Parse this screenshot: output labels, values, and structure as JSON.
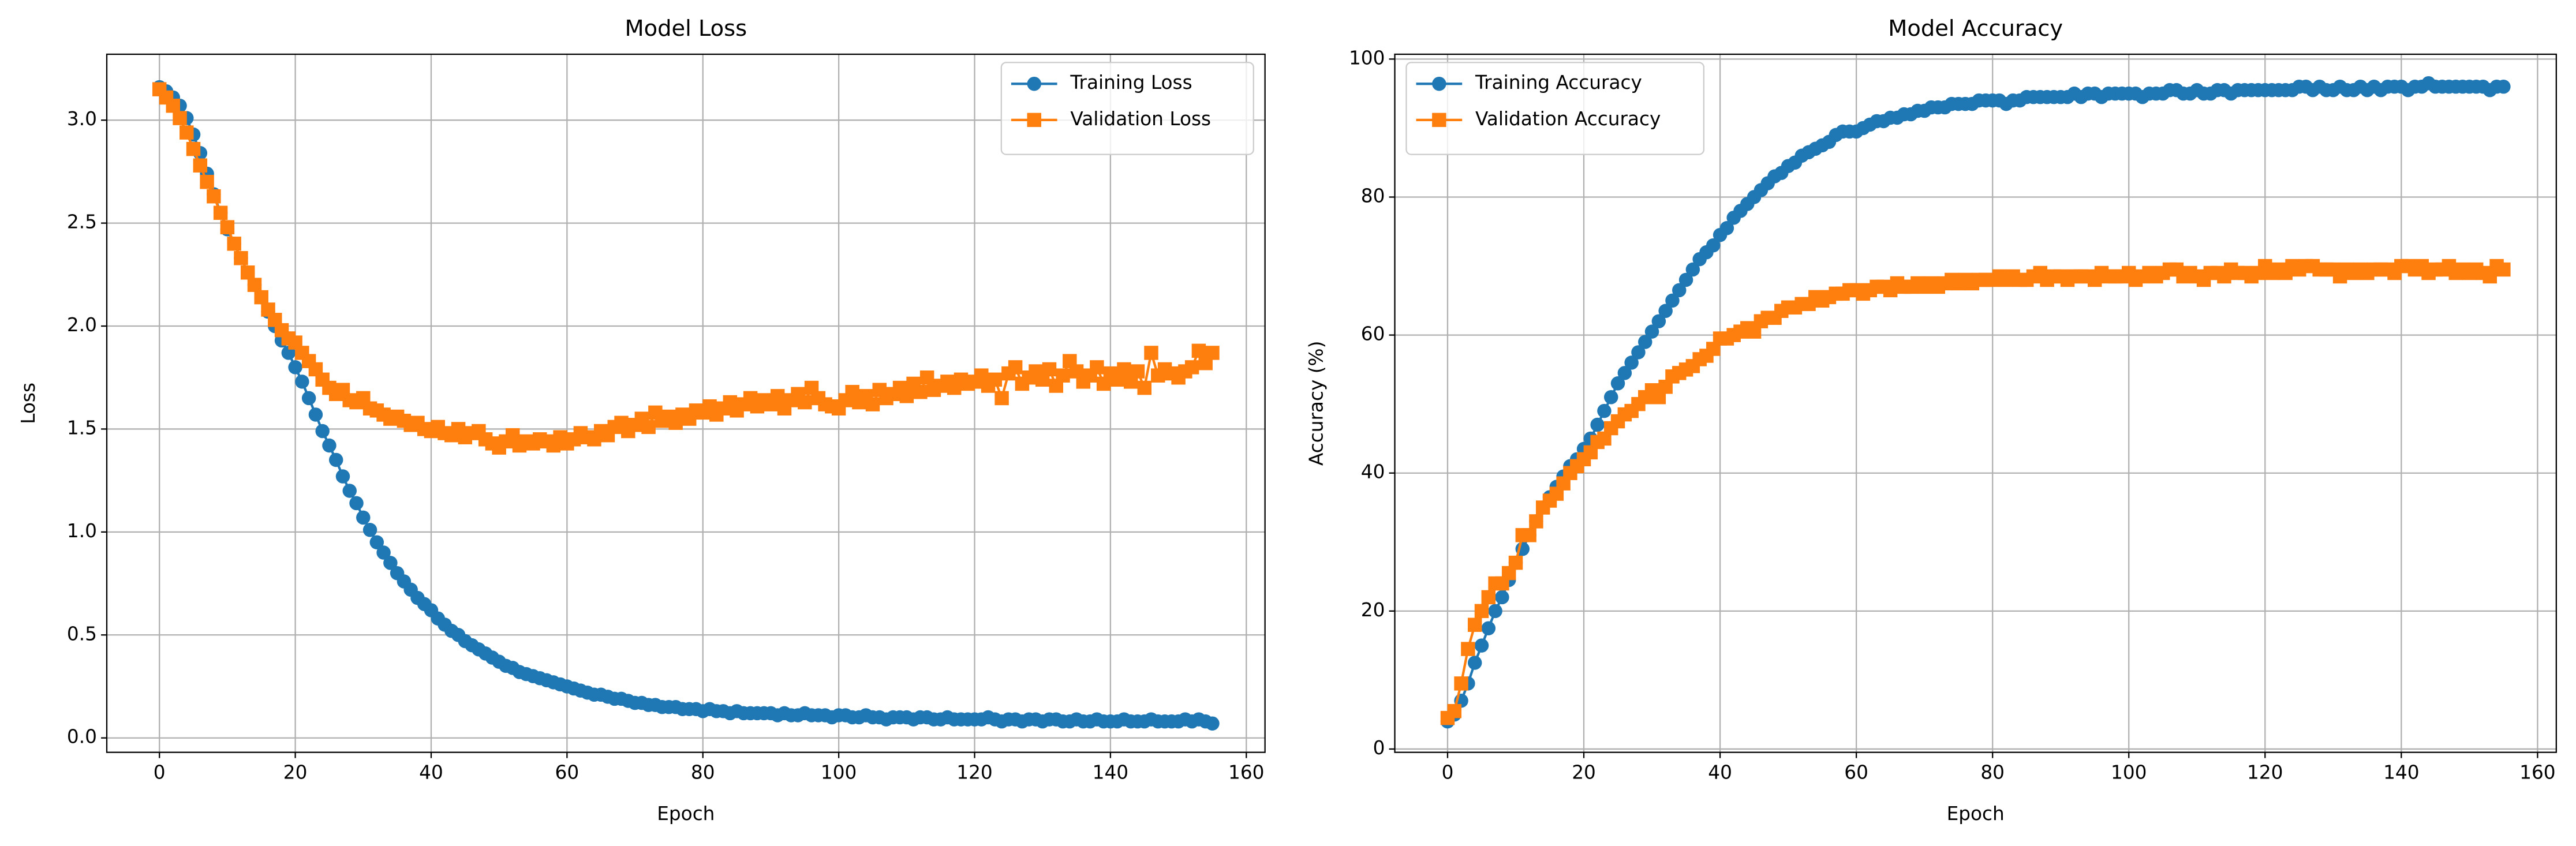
{
  "chart_data": [
    {
      "type": "line",
      "title": "Model Loss",
      "xlabel": "Epoch",
      "ylabel": "Loss",
      "grid": true,
      "legend": "upper right",
      "xlim": [
        -7.75,
        162.75
      ],
      "xticks": [
        0,
        20,
        40,
        60,
        80,
        100,
        120,
        140,
        160
      ],
      "ylim": [
        -0.07,
        3.32
      ],
      "yticks": [
        {
          "value": 0,
          "label": "0.0"
        },
        0.5,
        {
          "value": 1,
          "label": "1.0"
        },
        1.5,
        {
          "value": 2,
          "label": "2.0"
        },
        2.5,
        {
          "value": 3,
          "label": "3.0"
        }
      ],
      "x": [
        0,
        1,
        2,
        3,
        4,
        5,
        6,
        7,
        8,
        9,
        10,
        11,
        12,
        13,
        14,
        15,
        16,
        17,
        18,
        19,
        20,
        21,
        22,
        23,
        24,
        25,
        26,
        27,
        28,
        29,
        30,
        31,
        32,
        33,
        34,
        35,
        36,
        37,
        38,
        39,
        40,
        41,
        42,
        43,
        44,
        45,
        46,
        47,
        48,
        49,
        50,
        51,
        52,
        53,
        54,
        55,
        56,
        57,
        58,
        59,
        60,
        61,
        62,
        63,
        64,
        65,
        66,
        67,
        68,
        69,
        70,
        71,
        72,
        73,
        74,
        75,
        76,
        77,
        78,
        79,
        80,
        81,
        82,
        83,
        84,
        85,
        86,
        87,
        88,
        89,
        90,
        91,
        92,
        93,
        94,
        95,
        96,
        97,
        98,
        99,
        100,
        101,
        102,
        103,
        104,
        105,
        106,
        107,
        108,
        109,
        110,
        111,
        112,
        113,
        114,
        115,
        116,
        117,
        118,
        119,
        120,
        121,
        122,
        123,
        124,
        125,
        126,
        127,
        128,
        129,
        130,
        131,
        132,
        133,
        134,
        135,
        136,
        137,
        138,
        139,
        140,
        141,
        142,
        143,
        144,
        145,
        146,
        147,
        148,
        149,
        150,
        151,
        152,
        153,
        154,
        155
      ],
      "series": [
        {
          "name": "Training Loss",
          "color": "#1f77b4",
          "marker": "circle",
          "values": [
            3.16,
            3.14,
            3.11,
            3.07,
            3.01,
            2.93,
            2.84,
            2.74,
            2.64,
            2.55,
            2.47,
            2.4,
            2.33,
            2.26,
            2.2,
            2.14,
            2.07,
            2.0,
            1.93,
            1.87,
            1.8,
            1.73,
            1.65,
            1.57,
            1.49,
            1.42,
            1.35,
            1.27,
            1.2,
            1.14,
            1.07,
            1.01,
            0.95,
            0.9,
            0.85,
            0.8,
            0.76,
            0.72,
            0.68,
            0.65,
            0.62,
            0.58,
            0.55,
            0.52,
            0.5,
            0.47,
            0.45,
            0.43,
            0.41,
            0.39,
            0.37,
            0.35,
            0.34,
            0.32,
            0.31,
            0.3,
            0.29,
            0.28,
            0.27,
            0.26,
            0.25,
            0.24,
            0.23,
            0.22,
            0.21,
            0.21,
            0.2,
            0.19,
            0.19,
            0.18,
            0.17,
            0.17,
            0.16,
            0.16,
            0.15,
            0.15,
            0.15,
            0.14,
            0.14,
            0.14,
            0.13,
            0.14,
            0.13,
            0.13,
            0.12,
            0.13,
            0.12,
            0.12,
            0.12,
            0.12,
            0.12,
            0.11,
            0.12,
            0.11,
            0.11,
            0.12,
            0.11,
            0.11,
            0.11,
            0.1,
            0.11,
            0.11,
            0.1,
            0.1,
            0.11,
            0.1,
            0.1,
            0.09,
            0.1,
            0.1,
            0.1,
            0.09,
            0.1,
            0.1,
            0.09,
            0.09,
            0.1,
            0.09,
            0.09,
            0.09,
            0.09,
            0.09,
            0.1,
            0.09,
            0.08,
            0.09,
            0.09,
            0.08,
            0.09,
            0.09,
            0.08,
            0.09,
            0.09,
            0.08,
            0.08,
            0.09,
            0.08,
            0.08,
            0.09,
            0.08,
            0.08,
            0.08,
            0.09,
            0.08,
            0.08,
            0.08,
            0.09,
            0.08,
            0.08,
            0.08,
            0.08,
            0.09,
            0.08,
            0.09,
            0.08,
            0.07
          ]
        },
        {
          "name": "Validation Loss",
          "color": "#ff7f0e",
          "marker": "square",
          "values": [
            3.15,
            3.11,
            3.07,
            3.01,
            2.94,
            2.86,
            2.78,
            2.7,
            2.63,
            2.55,
            2.48,
            2.4,
            2.33,
            2.26,
            2.2,
            2.14,
            2.08,
            2.03,
            1.98,
            1.94,
            1.92,
            1.87,
            1.83,
            1.79,
            1.74,
            1.7,
            1.67,
            1.69,
            1.64,
            1.63,
            1.65,
            1.6,
            1.59,
            1.57,
            1.55,
            1.56,
            1.54,
            1.52,
            1.53,
            1.5,
            1.49,
            1.51,
            1.48,
            1.47,
            1.5,
            1.46,
            1.48,
            1.49,
            1.45,
            1.43,
            1.41,
            1.44,
            1.47,
            1.42,
            1.44,
            1.43,
            1.45,
            1.44,
            1.42,
            1.46,
            1.43,
            1.45,
            1.48,
            1.46,
            1.45,
            1.49,
            1.47,
            1.51,
            1.53,
            1.49,
            1.52,
            1.55,
            1.51,
            1.58,
            1.54,
            1.56,
            1.53,
            1.57,
            1.55,
            1.59,
            1.58,
            1.61,
            1.57,
            1.6,
            1.63,
            1.59,
            1.62,
            1.65,
            1.61,
            1.64,
            1.62,
            1.66,
            1.6,
            1.64,
            1.67,
            1.63,
            1.7,
            1.65,
            1.62,
            1.61,
            1.6,
            1.64,
            1.68,
            1.63,
            1.66,
            1.62,
            1.69,
            1.65,
            1.67,
            1.7,
            1.66,
            1.72,
            1.68,
            1.75,
            1.69,
            1.71,
            1.73,
            1.7,
            1.74,
            1.72,
            1.73,
            1.76,
            1.71,
            1.74,
            1.65,
            1.77,
            1.8,
            1.72,
            1.75,
            1.78,
            1.74,
            1.79,
            1.71,
            1.76,
            1.83,
            1.78,
            1.73,
            1.76,
            1.8,
            1.72,
            1.77,
            1.74,
            1.79,
            1.73,
            1.78,
            1.7,
            1.87,
            1.76,
            1.79,
            1.77,
            1.75,
            1.78,
            1.8,
            1.88,
            1.82,
            1.87
          ]
        }
      ]
    },
    {
      "type": "line",
      "title": "Model Accuracy",
      "xlabel": "Epoch",
      "ylabel": "Accuracy (%)",
      "grid": true,
      "legend": "upper left",
      "xlim": [
        -7.75,
        162.75
      ],
      "xticks": [
        0,
        20,
        40,
        60,
        80,
        100,
        120,
        140,
        160
      ],
      "ylim": [
        -0.48,
        100.7
      ],
      "yticks": [
        0,
        20,
        40,
        60,
        80,
        100
      ],
      "x": [
        0,
        1,
        2,
        3,
        4,
        5,
        6,
        7,
        8,
        9,
        10,
        11,
        12,
        13,
        14,
        15,
        16,
        17,
        18,
        19,
        20,
        21,
        22,
        23,
        24,
        25,
        26,
        27,
        28,
        29,
        30,
        31,
        32,
        33,
        34,
        35,
        36,
        37,
        38,
        39,
        40,
        41,
        42,
        43,
        44,
        45,
        46,
        47,
        48,
        49,
        50,
        51,
        52,
        53,
        54,
        55,
        56,
        57,
        58,
        59,
        60,
        61,
        62,
        63,
        64,
        65,
        66,
        67,
        68,
        69,
        70,
        71,
        72,
        73,
        74,
        75,
        76,
        77,
        78,
        79,
        80,
        81,
        82,
        83,
        84,
        85,
        86,
        87,
        88,
        89,
        90,
        91,
        92,
        93,
        94,
        95,
        96,
        97,
        98,
        99,
        100,
        101,
        102,
        103,
        104,
        105,
        106,
        107,
        108,
        109,
        110,
        111,
        112,
        113,
        114,
        115,
        116,
        117,
        118,
        119,
        120,
        121,
        122,
        123,
        124,
        125,
        126,
        127,
        128,
        129,
        130,
        131,
        132,
        133,
        134,
        135,
        136,
        137,
        138,
        139,
        140,
        141,
        142,
        143,
        144,
        145,
        146,
        147,
        148,
        149,
        150,
        151,
        152,
        153,
        154,
        155
      ],
      "series": [
        {
          "name": "Training Accuracy",
          "color": "#1f77b4",
          "marker": "circle",
          "values": [
            4,
            5,
            7,
            9.5,
            12.5,
            15,
            17.5,
            20,
            22,
            24.5,
            27,
            29,
            31,
            33,
            35,
            36.5,
            38,
            39.5,
            41,
            42,
            43.5,
            45,
            47,
            49,
            51,
            53,
            54.5,
            56,
            57.5,
            59,
            60.5,
            62,
            63.5,
            65,
            66.5,
            68,
            69.5,
            71,
            72,
            73,
            74.5,
            75.5,
            77,
            78,
            79,
            80,
            81,
            82,
            83,
            83.5,
            84.5,
            85,
            86,
            86.5,
            87,
            87.5,
            88,
            89,
            89.5,
            89.5,
            89.5,
            90,
            90.5,
            91,
            91,
            91.5,
            91.5,
            92,
            92,
            92.5,
            92.5,
            93,
            93,
            93,
            93.5,
            93.5,
            93.5,
            93.5,
            94,
            94,
            94,
            94,
            93.5,
            94,
            94,
            94.5,
            94.5,
            94.5,
            94.5,
            94.5,
            94.5,
            94.5,
            95,
            94.5,
            95,
            95,
            94.5,
            95,
            95,
            95,
            95,
            95,
            94.5,
            95,
            95,
            95,
            95.5,
            95.5,
            95,
            95,
            95.5,
            95,
            95,
            95.5,
            95.5,
            95,
            95.5,
            95.5,
            95.5,
            95.5,
            95.5,
            95.5,
            95.5,
            95.5,
            95.5,
            96,
            96,
            95.5,
            96,
            95.5,
            95.5,
            96,
            95.5,
            95.5,
            96,
            95.5,
            96,
            95.5,
            96,
            96,
            96,
            95.5,
            96,
            96,
            96.5,
            96,
            96,
            96,
            96,
            96,
            96,
            96,
            96,
            95.5,
            96,
            96
          ]
        },
        {
          "name": "Validation Accuracy",
          "color": "#ff7f0e",
          "marker": "square",
          "values": [
            4.5,
            5.5,
            9.5,
            14.5,
            18,
            20,
            22,
            24,
            24,
            25.5,
            27,
            31,
            31,
            33,
            35,
            36,
            37,
            38.5,
            40,
            41,
            42,
            43,
            44.5,
            45,
            46.5,
            47.5,
            48.5,
            49,
            50,
            51,
            52,
            51,
            52.5,
            54,
            54.5,
            55,
            55.5,
            56.5,
            57,
            58,
            59.5,
            59.5,
            60,
            60.5,
            61,
            60.5,
            62,
            62.5,
            62.5,
            63.5,
            64,
            64,
            64.5,
            64.5,
            65.5,
            65,
            65.5,
            66,
            66,
            66.5,
            66.5,
            66,
            66.5,
            67,
            67,
            66.5,
            67.5,
            67,
            67,
            67.5,
            67,
            67.5,
            67,
            67.5,
            68,
            67.5,
            68,
            67.5,
            68,
            68,
            68,
            68.5,
            68,
            68.5,
            68,
            68,
            68.5,
            69,
            68,
            68.5,
            68.5,
            68,
            68.5,
            68.5,
            68.5,
            68,
            69,
            68.5,
            68.5,
            68.5,
            69,
            68,
            68.5,
            69,
            68.5,
            69,
            69.5,
            69.5,
            68.5,
            69,
            68.5,
            68,
            69,
            69,
            68.5,
            69.5,
            69,
            69,
            68.5,
            69,
            70,
            69,
            69.5,
            69,
            70,
            69.5,
            70,
            70,
            69.5,
            69.5,
            69.5,
            68.5,
            69.5,
            69,
            69.5,
            69,
            69.5,
            69.5,
            69.5,
            69,
            70,
            70,
            69.5,
            70,
            69,
            69.5,
            69.5,
            70,
            69,
            69.5,
            69,
            69.5,
            69,
            68.5,
            70,
            69.5
          ]
        }
      ]
    }
  ]
}
